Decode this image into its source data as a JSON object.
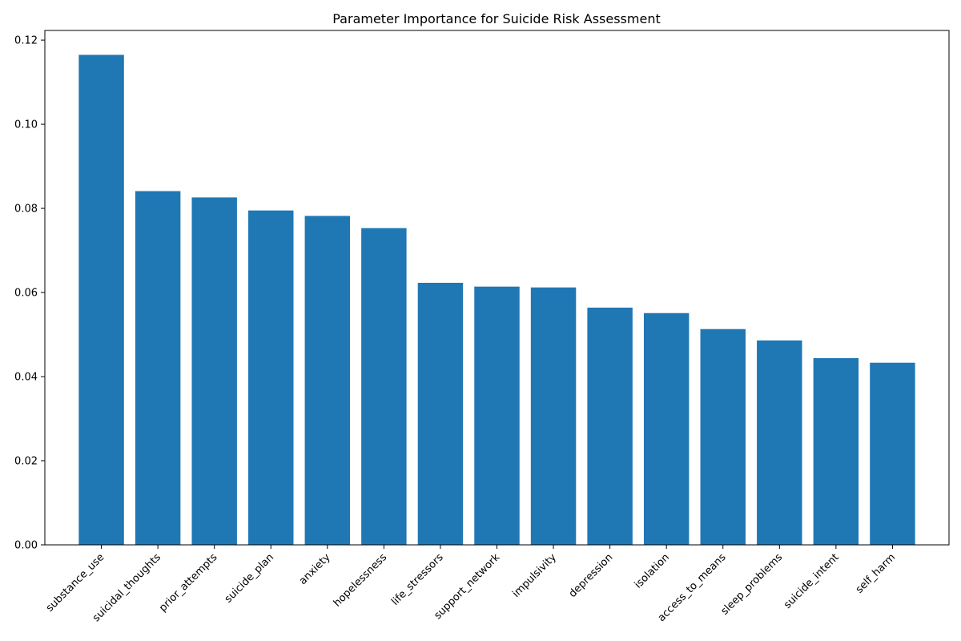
{
  "chart_data": {
    "type": "bar",
    "title": "Parameter Importance for Suicide Risk Assessment",
    "xlabel": "",
    "ylabel": "",
    "categories": [
      "substance_use",
      "suicidal_thoughts",
      "prior_attempts",
      "suicide_plan",
      "anxiety",
      "hopelessness",
      "life_stressors",
      "support_network",
      "impulsivity",
      "depression",
      "isolation",
      "access_to_means",
      "sleep_problems",
      "suicide_intent",
      "self_harm"
    ],
    "values": [
      0.1165,
      0.0841,
      0.0826,
      0.0795,
      0.0782,
      0.0753,
      0.0623,
      0.0614,
      0.0612,
      0.0564,
      0.0551,
      0.0513,
      0.0486,
      0.0444,
      0.0433
    ],
    "ylim": [
      0,
      0.1223
    ],
    "yticks": [
      "0.00",
      "0.02",
      "0.04",
      "0.06",
      "0.08",
      "0.10",
      "0.12"
    ],
    "grid": false,
    "bar_color": "#1f77b4"
  }
}
